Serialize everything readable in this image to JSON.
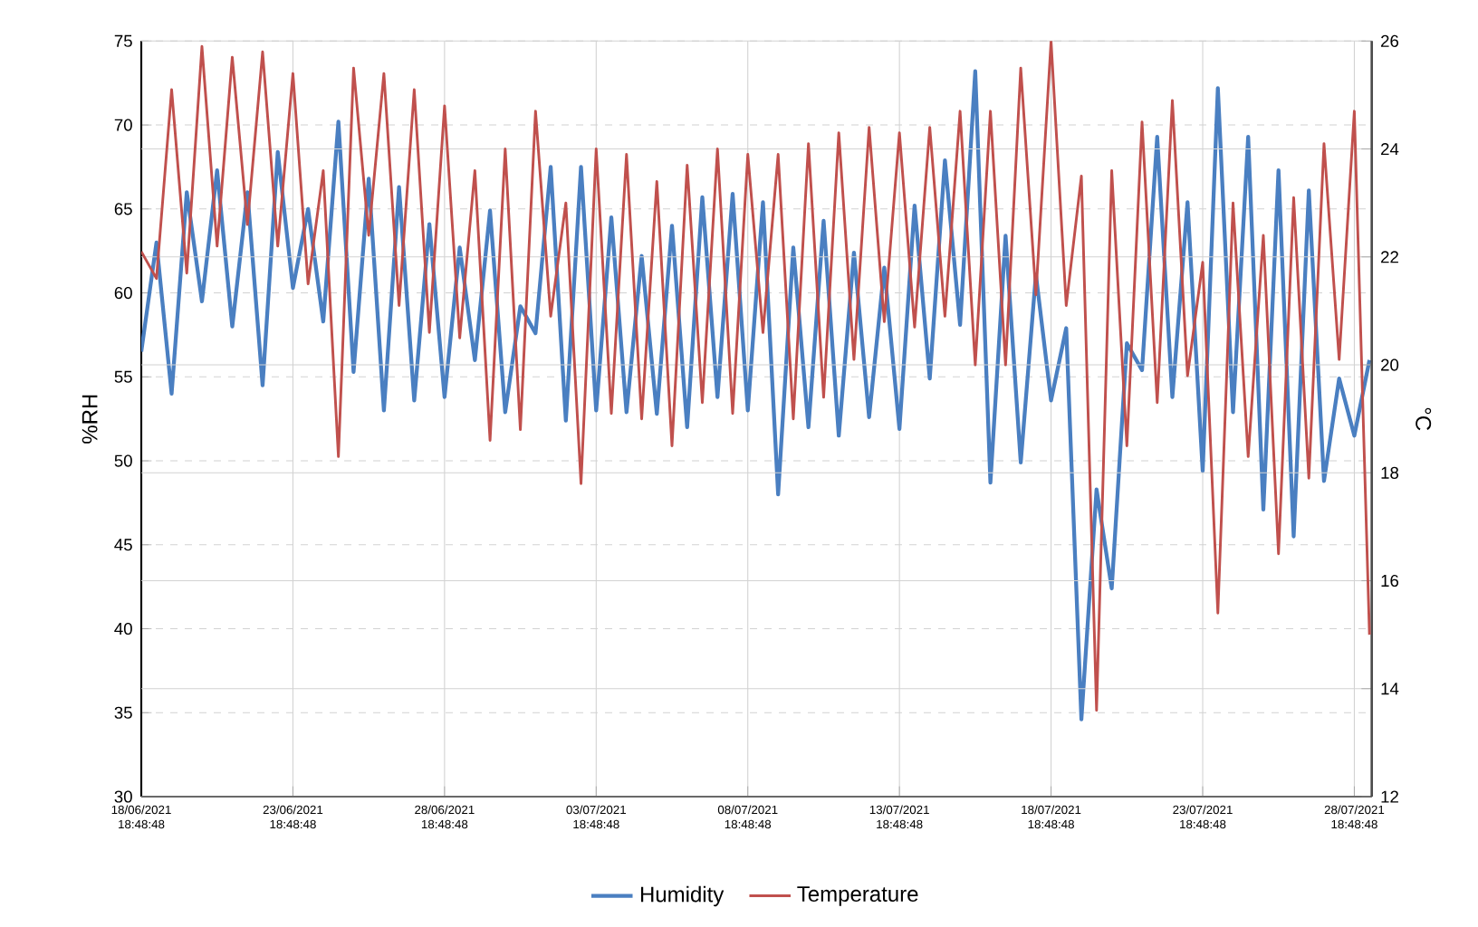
{
  "chart_data": {
    "type": "line",
    "ylabel": "%RH",
    "y2label": "°C",
    "categories": [
      "18/06/2021 18:48:48",
      null,
      null,
      null,
      null,
      null,
      null,
      null,
      null,
      null,
      "23/06/2021 18:48:48",
      null,
      null,
      null,
      null,
      null,
      null,
      null,
      null,
      null,
      "28/06/2021 18:48:48",
      null,
      null,
      null,
      null,
      null,
      null,
      null,
      null,
      null,
      "03/07/2021 18:48:48",
      null,
      null,
      null,
      null,
      null,
      null,
      null,
      null,
      null,
      "08/07/2021 18:48:48",
      null,
      null,
      null,
      null,
      null,
      null,
      null,
      null,
      null,
      "13/07/2021 18:48:48",
      null,
      null,
      null,
      null,
      null,
      null,
      null,
      null,
      null,
      "18/07/2021 18:48:48",
      null,
      null,
      null,
      null,
      null,
      null,
      null,
      null,
      null,
      "23/07/2021 18:48:48",
      null,
      null,
      null,
      null,
      null,
      null,
      null,
      null,
      null,
      "28/07/2021 18:48:48",
      null
    ],
    "ylim": [
      30,
      75
    ],
    "yticks": [
      30,
      35,
      40,
      45,
      50,
      55,
      60,
      65,
      70,
      75
    ],
    "y2lim": [
      12,
      26
    ],
    "y2ticks": [
      12,
      14,
      16,
      18,
      20,
      22,
      24,
      26
    ],
    "grid": true,
    "legend": "bottom",
    "series": [
      {
        "name": "Humidity",
        "color": "#4a7fc1",
        "values": [
          56.5,
          63,
          54,
          66,
          59.5,
          67.3,
          58,
          66,
          54.5,
          68.4,
          60.3,
          65,
          58.3,
          70.2,
          55.3,
          66.8,
          53,
          66.3,
          53.6,
          64.1,
          53.8,
          62.7,
          56,
          64.9,
          52.9,
          59.2,
          57.6,
          67.5,
          52.4,
          67.5,
          53,
          64.5,
          52.9,
          62.2,
          52.8,
          64,
          52,
          65.7,
          53.8,
          65.9,
          53,
          65.4,
          48,
          62.7,
          52,
          64.3,
          51.5,
          62.4,
          52.6,
          61.5,
          51.9,
          65.2,
          54.9,
          67.9,
          58.1,
          73.2,
          48.7,
          63.4,
          49.9,
          61.1,
          53.6,
          57.9,
          34.6,
          48.3,
          42.4,
          57,
          55.4,
          69.3,
          53.8,
          65.4,
          49.4,
          72.2,
          52.9,
          69.3,
          47.1,
          67.3,
          45.5,
          66.1,
          48.8,
          54.9,
          51.5,
          56
        ]
      },
      {
        "name": "Temperature",
        "color": "#c0504d",
        "axis": "y2",
        "values": [
          22.1,
          21.6,
          25.1,
          21.7,
          25.9,
          22.2,
          25.7,
          22.6,
          25.8,
          22.2,
          25.4,
          21.5,
          23.6,
          18.3,
          25.5,
          22.4,
          25.4,
          21.1,
          25.1,
          20.6,
          24.8,
          20.5,
          23.6,
          18.6,
          24.0,
          18.8,
          24.7,
          20.9,
          23.0,
          17.8,
          24.0,
          19.1,
          23.9,
          19.0,
          23.4,
          18.5,
          23.7,
          19.3,
          24.0,
          19.1,
          23.9,
          20.6,
          23.9,
          19.0,
          24.1,
          19.4,
          24.3,
          20.1,
          24.4,
          20.8,
          24.3,
          20.7,
          24.4,
          20.9,
          24.7,
          20.0,
          24.7,
          20.0,
          25.5,
          21.3,
          26.0,
          21.1,
          23.5,
          13.6,
          23.6,
          18.5,
          24.5,
          19.3,
          24.9,
          19.8,
          21.9,
          15.4,
          23.0,
          18.3,
          22.4,
          16.5,
          23.1,
          17.9,
          24.1,
          20.1,
          24.7,
          15.0
        ]
      }
    ]
  }
}
